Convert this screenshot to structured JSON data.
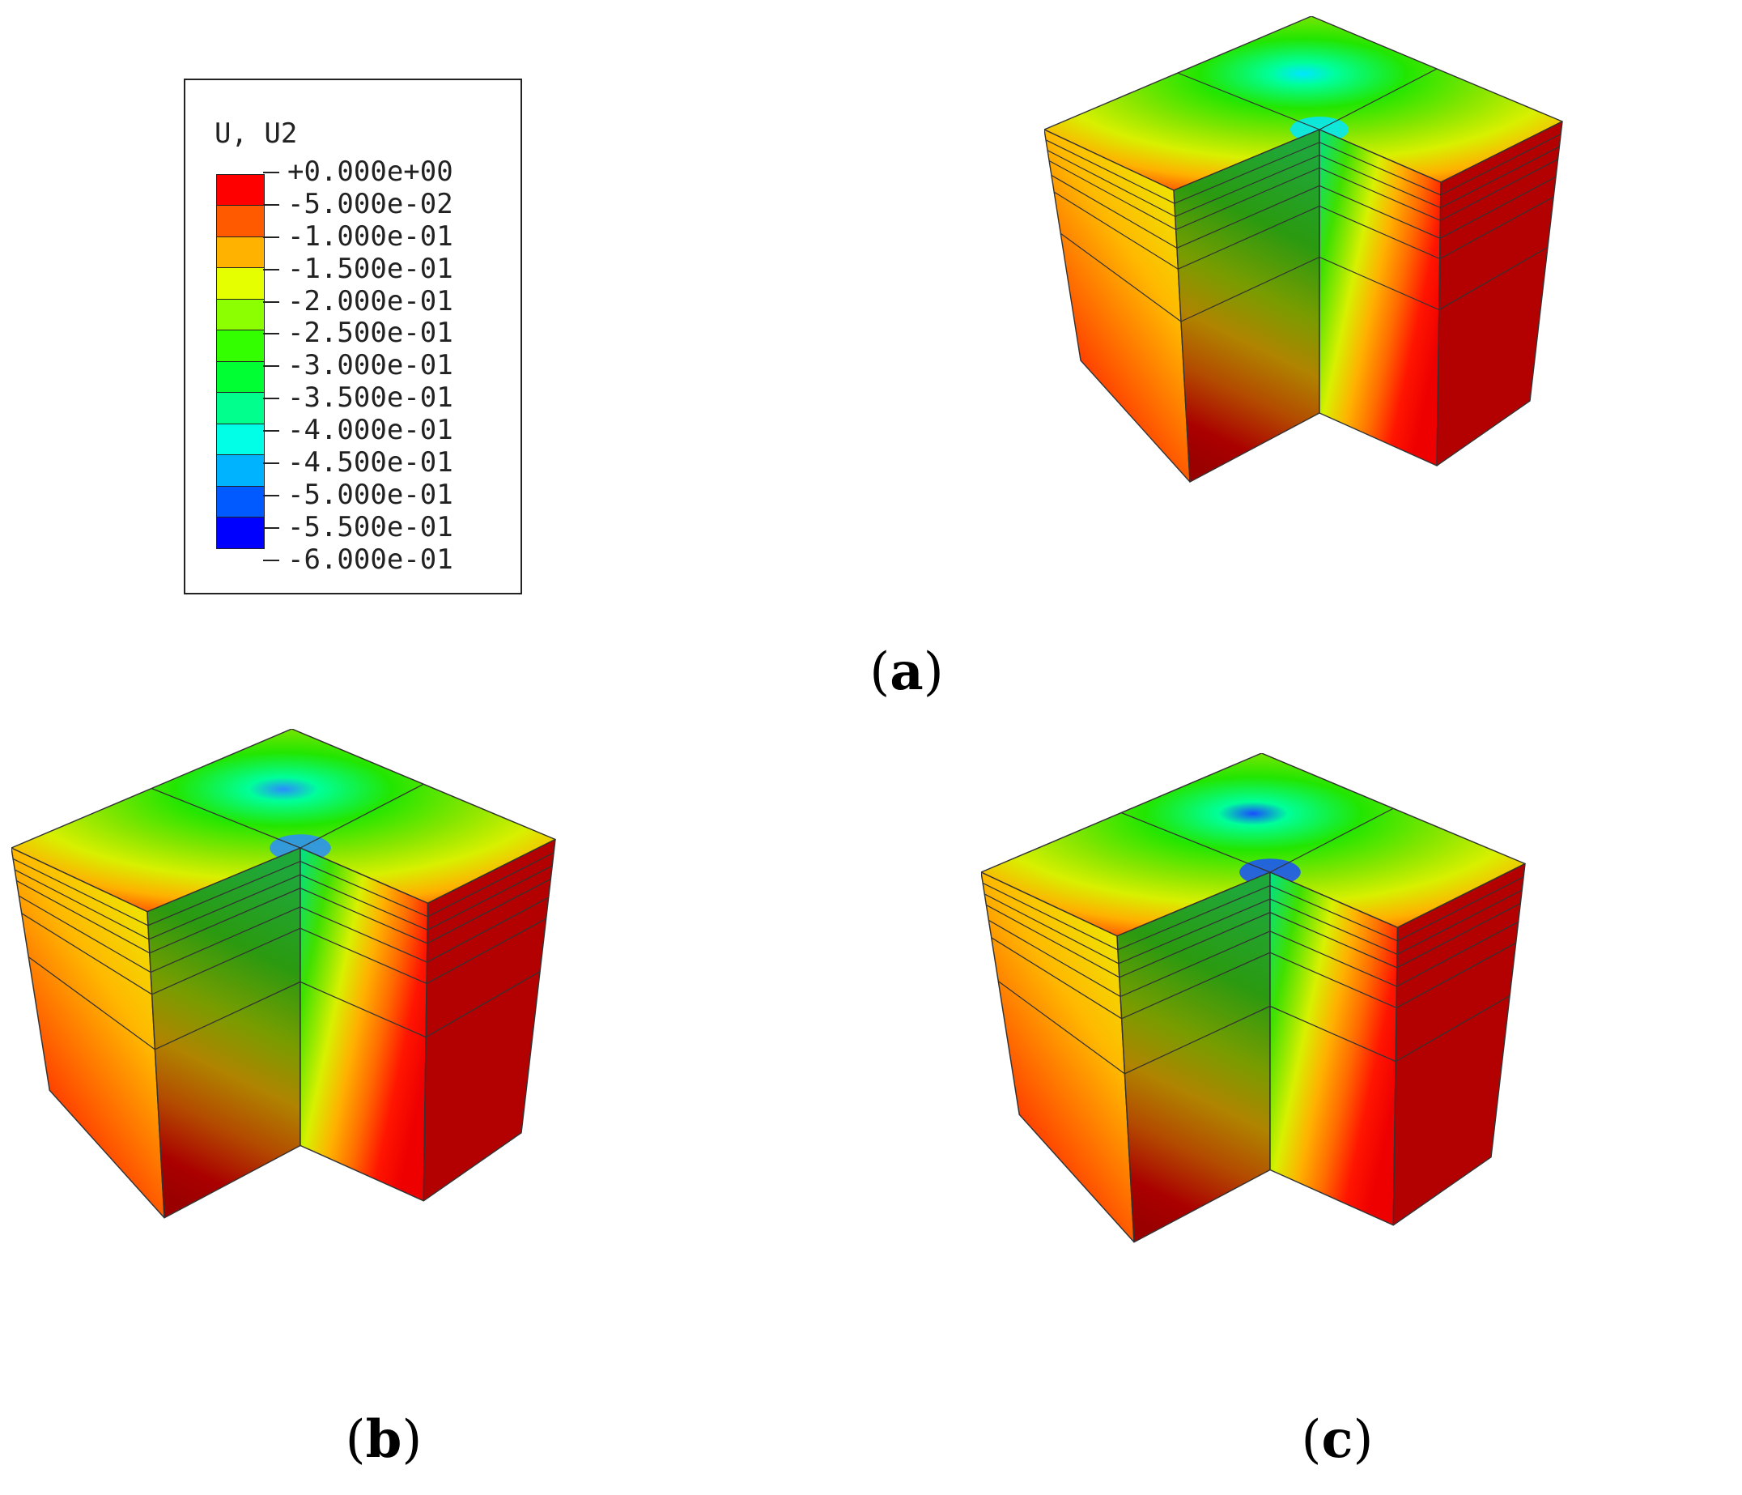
{
  "legend": {
    "title": "U, U2",
    "entries": [
      {
        "label": "+0.000e+00",
        "color": "#ff0000"
      },
      {
        "label": "-5.000e-02",
        "color": "#ff5a00"
      },
      {
        "label": "-1.000e-01",
        "color": "#ffb300"
      },
      {
        "label": "-1.500e-01",
        "color": "#e6ff00"
      },
      {
        "label": "-2.000e-01",
        "color": "#8cff00"
      },
      {
        "label": "-2.500e-01",
        "color": "#33ff00"
      },
      {
        "label": "-3.000e-01",
        "color": "#00ff33"
      },
      {
        "label": "-3.500e-01",
        "color": "#00ff8c"
      },
      {
        "label": "-4.000e-01",
        "color": "#00ffe6"
      },
      {
        "label": "-4.500e-01",
        "color": "#00b3ff"
      },
      {
        "label": "-5.000e-01",
        "color": "#005aff"
      },
      {
        "label": "-5.500e-01",
        "color": "#0000ff"
      },
      {
        "label": "-6.000e-01",
        "color": ""
      }
    ]
  },
  "panels": [
    {
      "id": "a",
      "label_open": "(",
      "label_letter": "a",
      "label_close": ")",
      "peak_color": "#00e6ff"
    },
    {
      "id": "b",
      "label_open": "(",
      "label_letter": "b",
      "label_close": ")",
      "peak_color": "#2a8cff"
    },
    {
      "id": "c",
      "label_open": "(",
      "label_letter": "c",
      "label_close": ")",
      "peak_color": "#1a4dff"
    }
  ]
}
